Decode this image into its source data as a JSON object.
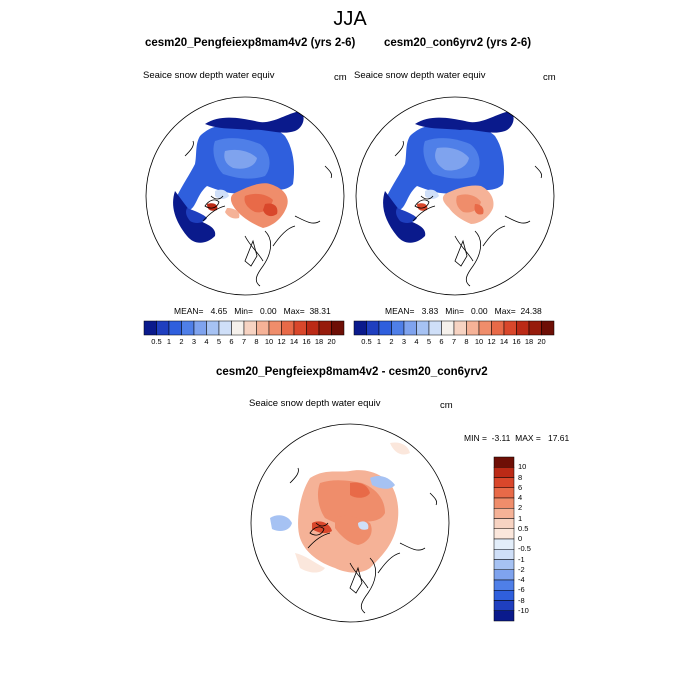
{
  "figure": {
    "title": "JJA"
  },
  "panels": {
    "left": {
      "title": "cesm20_Pengfeiexp8mam4v2 (yrs 2-6)",
      "variable": "Seaice snow depth water equiv",
      "units": "cm",
      "stats": {
        "mean_label": "MEAN=",
        "mean": "4.65",
        "min_label": "Min=",
        "min": "0.00",
        "max_label": "Max=",
        "max": "38.31"
      }
    },
    "right": {
      "title": "cesm20_con6yrv2 (yrs 2-6)",
      "variable": "Seaice snow depth water equiv",
      "units": "cm",
      "stats": {
        "mean_label": "MEAN=",
        "mean": "3.83",
        "min_label": "Min=",
        "min": "0.00",
        "max_label": "Max=",
        "max": "24.38"
      }
    },
    "diff": {
      "title": "cesm20_Pengfeiexp8mam4v2 - cesm20_con6yrv2",
      "variable": "Seaice snow depth water equiv",
      "units": "cm",
      "stats": {
        "min_label": "MIN =",
        "min": "-3.11",
        "max_label": "MAX =",
        "max": "17.61"
      }
    }
  },
  "chart_data": [
    {
      "type": "heatmap",
      "title": "cesm20_Pengfeiexp8mam4v2 (yrs 2-6)",
      "projection": "north polar stereographic",
      "variable": "Seaice snow depth water equiv",
      "units": "cm",
      "stats": {
        "mean": 4.65,
        "min": 0.0,
        "max": 38.31
      },
      "colorbar_levels": [
        "0.5",
        "1",
        "2",
        "3",
        "4",
        "5",
        "6",
        "7",
        "8",
        "10",
        "12",
        "14",
        "16",
        "18",
        "20"
      ],
      "colorbar_colors": [
        "#0a1a8c",
        "#1f3fbf",
        "#2f5fdd",
        "#4f7fe8",
        "#7fa3ee",
        "#a6c2f3",
        "#cfdff8",
        "#f6f1ec",
        "#f7d3c2",
        "#f5b297",
        "#ef8d6b",
        "#e86a48",
        "#d9472b",
        "#bb2a16",
        "#961b0b",
        "#6e0f06"
      ]
    },
    {
      "type": "heatmap",
      "title": "cesm20_con6yrv2 (yrs 2-6)",
      "projection": "north polar stereographic",
      "variable": "Seaice snow depth water equiv",
      "units": "cm",
      "stats": {
        "mean": 3.83,
        "min": 0.0,
        "max": 24.38
      },
      "colorbar_levels": [
        "0.5",
        "1",
        "2",
        "3",
        "4",
        "5",
        "6",
        "7",
        "8",
        "10",
        "12",
        "14",
        "16",
        "18",
        "20"
      ],
      "colorbar_colors": [
        "#0a1a8c",
        "#1f3fbf",
        "#2f5fdd",
        "#4f7fe8",
        "#7fa3ee",
        "#a6c2f3",
        "#cfdff8",
        "#f6f1ec",
        "#f7d3c2",
        "#f5b297",
        "#ef8d6b",
        "#e86a48",
        "#d9472b",
        "#bb2a16",
        "#961b0b",
        "#6e0f06"
      ]
    },
    {
      "type": "heatmap",
      "title": "cesm20_Pengfeiexp8mam4v2 - cesm20_con6yrv2",
      "projection": "north polar stereographic",
      "variable": "Seaice snow depth water equiv",
      "units": "cm",
      "stats": {
        "min": -3.11,
        "max": 17.61
      },
      "colorbar_levels": [
        "10",
        "8",
        "6",
        "4",
        "2",
        "1",
        "0.5",
        "0",
        "-0.5",
        "-1",
        "-2",
        "-4",
        "-6",
        "-8",
        "-10"
      ],
      "colorbar_colors": [
        "#6e0f06",
        "#bb2a16",
        "#d9472b",
        "#e86a48",
        "#ef8d6b",
        "#f5b297",
        "#f7d3c2",
        "#fbe7dc",
        "#e3eefa",
        "#cfdff8",
        "#a6c2f3",
        "#7fa3ee",
        "#4f7fe8",
        "#2f5fdd",
        "#1f3fbf",
        "#0a1a8c"
      ]
    }
  ]
}
